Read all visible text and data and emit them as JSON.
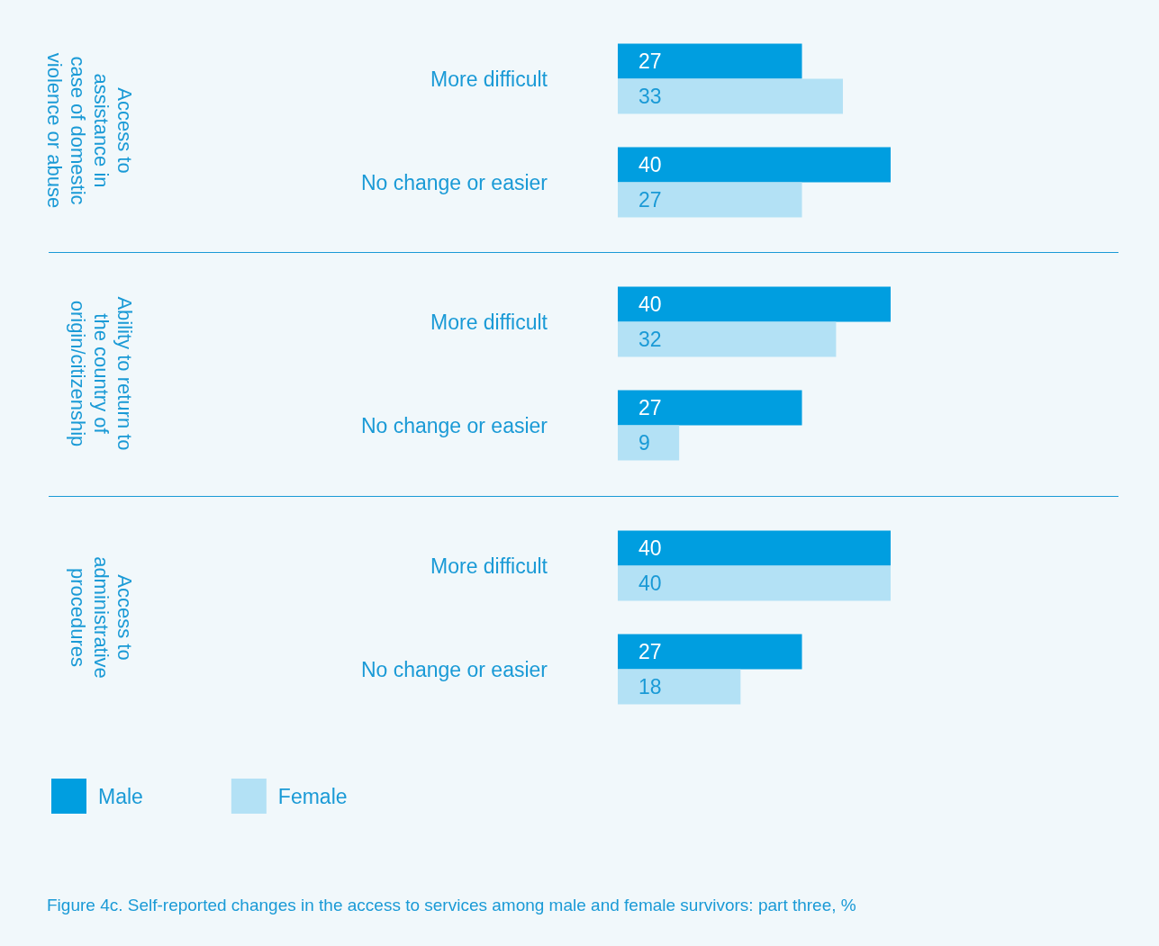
{
  "chart_data": [
    {
      "type": "bar",
      "orientation": "horizontal",
      "ylabel": "Access to assistance in case of domestic violence or abuse",
      "categories": [
        "More difficult",
        "No change or easier"
      ],
      "data_labels": true,
      "legend": false,
      "series": [
        {
          "color": "#009ee0",
          "values": [
            27,
            40
          ]
        },
        {
          "color": "#b3e1f5",
          "values": [
            33,
            27
          ]
        }
      ]
    },
    {
      "type": "bar",
      "orientation": "horizontal",
      "ylabel": "Ability to return to the country of origin/citizenship",
      "categories": [
        "More difficult",
        "No change or easier"
      ],
      "data_labels": true,
      "legend": false,
      "series": [
        {
          "color": "#009ee0",
          "values": [
            40,
            27
          ]
        },
        {
          "color": "#b3e1f5",
          "values": [
            32,
            9
          ]
        }
      ]
    },
    {
      "type": "bar",
      "orientation": "horizontal",
      "ylabel": "Access to administrative procedures",
      "categories": [
        "More difficult",
        "No change or easier"
      ],
      "data_labels": true,
      "legend": "bottom left",
      "annotations": [
        "Figure 4c. Self-reported changes in the access to services among male and female survivors: part three, %"
      ],
      "series": [
        {
          "name": "Male",
          "color": "#009ee0",
          "values": [
            40,
            27
          ]
        },
        {
          "name": "Female",
          "color": "#b3e1f5",
          "values": [
            40,
            18
          ]
        }
      ]
    }
  ]
}
